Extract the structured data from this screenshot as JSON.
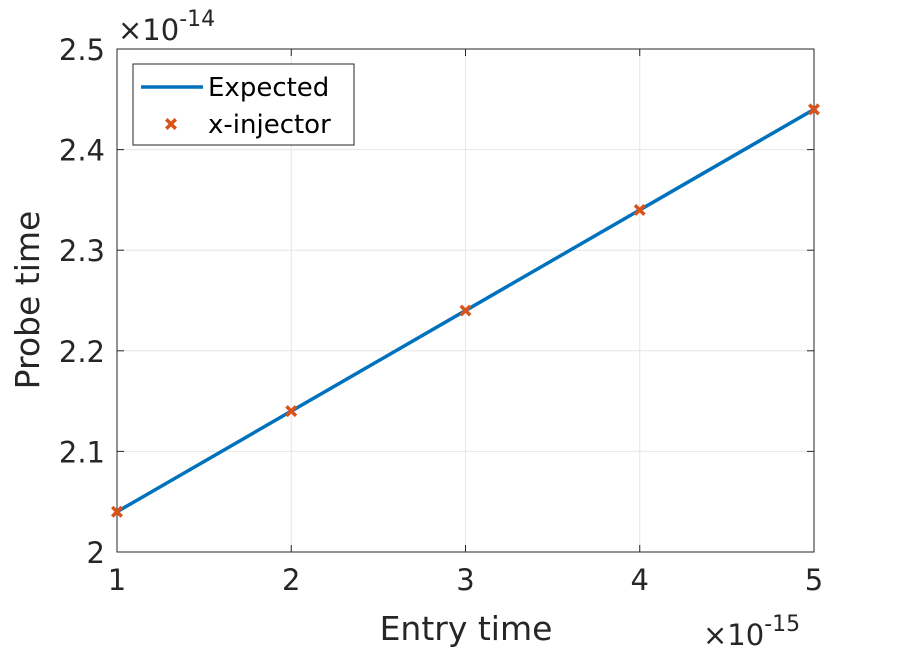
{
  "chart_data": {
    "type": "line",
    "x": [
      1,
      2,
      3,
      4,
      5
    ],
    "x_multiplier_label": "×10",
    "x_multiplier_exponent": "-15",
    "y_multiplier_label": "×10",
    "y_multiplier_exponent": "-14",
    "series": [
      {
        "name": "Expected",
        "style": "line",
        "color": "#0072BD",
        "x": [
          1,
          5
        ],
        "values": [
          2.04,
          2.44
        ]
      },
      {
        "name": "x-injector",
        "style": "marker",
        "color": "#D95319",
        "x": [
          1,
          2,
          3,
          4,
          5
        ],
        "values": [
          2.04,
          2.14,
          2.24,
          2.34,
          2.44
        ]
      }
    ],
    "xlabel": "Entry time",
    "ylabel": "Probe time",
    "xlim": [
      1,
      5
    ],
    "ylim": [
      2.0,
      2.5
    ],
    "x_ticks": [
      1,
      2,
      3,
      4,
      5
    ],
    "x_tick_labels": [
      "1",
      "2",
      "3",
      "4",
      "5"
    ],
    "y_ticks": [
      2.0,
      2.1,
      2.2,
      2.3,
      2.4,
      2.5
    ],
    "y_tick_labels": [
      "2",
      "2.1",
      "2.2",
      "2.3",
      "2.4",
      "2.5"
    ],
    "grid": true,
    "legend_position": "top-left",
    "axis_color": "#262626",
    "grid_color": "#e6e6e6"
  }
}
